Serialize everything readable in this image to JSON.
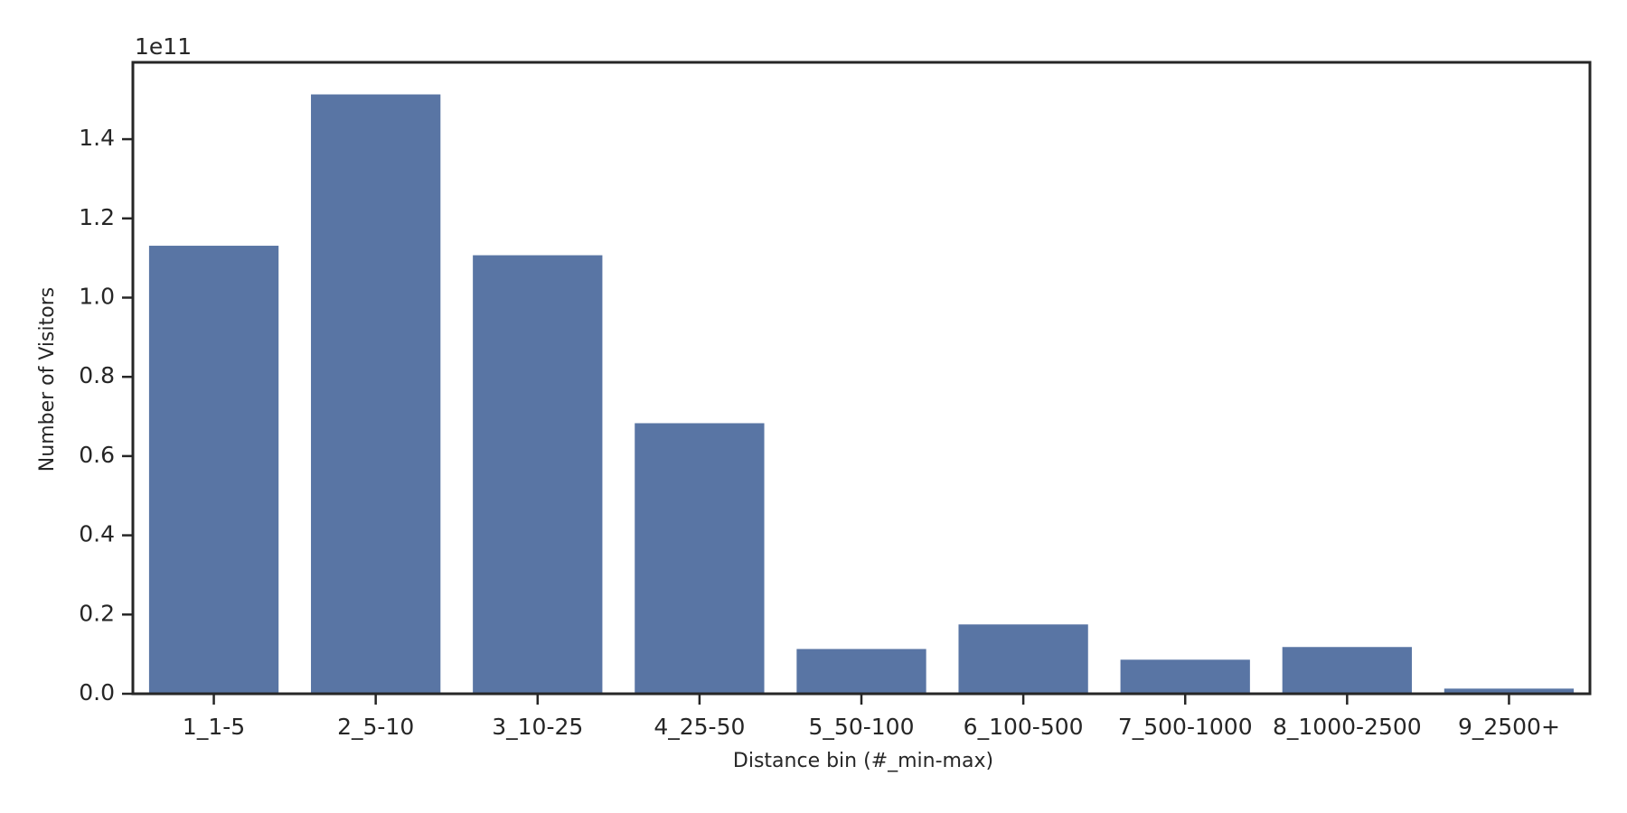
{
  "chart_data": {
    "type": "bar",
    "x_label": "Distance bin (#_min-max)",
    "y_label": "Number of Visitors",
    "y_offset_label": "1e11",
    "categories": [
      "1_1-5",
      "2_5-10",
      "3_10-25",
      "4_25-50",
      "5_50-100",
      "6_100-500",
      "7_500-1000",
      "8_1000-2500",
      "9_2500+"
    ],
    "values": [
      1.131,
      1.513,
      1.107,
      0.683,
      0.113,
      0.175,
      0.086,
      0.118,
      0.013
    ],
    "color": "#5975a4",
    "ylim": [
      0,
      1.594
    ],
    "yticks": [
      {
        "value": 0,
        "label": "0.0"
      },
      0.2,
      0.4,
      0.6,
      0.8,
      {
        "value": 1,
        "label": "1.0"
      },
      1.2,
      1.4
    ]
  }
}
